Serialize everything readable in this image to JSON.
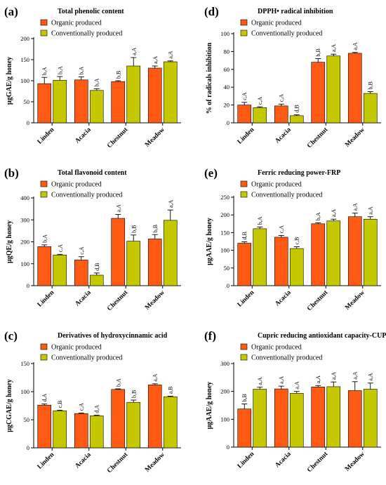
{
  "figure": {
    "panels": [
      {
        "id": "a",
        "letter": "(a)",
        "title": "Total phenolic content",
        "ylabel": "μgGAE/g honey"
      },
      {
        "id": "d",
        "letter": "(d)",
        "title": "DPPH• radical inhibition",
        "ylabel": "% of radicals inhibition"
      },
      {
        "id": "b",
        "letter": "(b)",
        "title": "Total flavonoid content",
        "ylabel": "μgQE/g honey"
      },
      {
        "id": "e",
        "letter": "(e)",
        "title": "Ferric reducing power-FRP",
        "ylabel": "μgAAE/g honey"
      },
      {
        "id": "c",
        "letter": "(c)",
        "title": "Derivatives of hydroxycinnamic acid",
        "ylabel": "μgCGAE/g honey"
      },
      {
        "id": "f",
        "letter": "(f)",
        "title": "Cupric reducing antioxidant capacity-CUPRAC",
        "ylabel": "μgAAE/g honey"
      }
    ]
  },
  "colors": {
    "organic": "#ff5a14",
    "conventional": "#c5c800"
  },
  "chart_data": [
    {
      "panel": "a",
      "type": "bar",
      "title": "Total phenolic content",
      "ylabel": "μgGAE/g honey",
      "xlabel": "",
      "categories": [
        "Linden",
        "Acacia",
        "Chestnut",
        "Meadow"
      ],
      "ylim": [
        0,
        200
      ],
      "yticks": [
        0,
        50,
        100,
        150,
        200
      ],
      "series": [
        {
          "name": "Organic produced",
          "values": [
            93,
            102,
            98,
            130
          ],
          "errors": [
            15,
            7,
            2,
            5
          ],
          "labels": [
            "b,A",
            "b,A",
            "b,B",
            "a,A"
          ]
        },
        {
          "name": "Conventionally produced",
          "values": [
            101,
            77,
            135,
            145
          ],
          "errors": [
            9,
            4,
            20,
            2
          ],
          "labels": [
            "b,A",
            "b,A",
            "a,A",
            "a,A"
          ]
        }
      ]
    },
    {
      "panel": "d",
      "type": "bar",
      "title": "DPPH• radical inhibition",
      "ylabel": "% of radicals inhibition",
      "xlabel": "",
      "categories": [
        "Linden",
        "Acacia",
        "Chestnut",
        "Meadow"
      ],
      "ylim": [
        0,
        100
      ],
      "yticks": [
        0,
        20,
        40,
        60,
        80,
        100
      ],
      "series": [
        {
          "name": "Organic produced",
          "values": [
            20,
            19,
            68,
            78
          ],
          "errors": [
            3,
            2,
            4,
            1
          ],
          "labels": [
            "c,A",
            "c,A",
            "b,B",
            "a,A"
          ]
        },
        {
          "name": "Conventionally produced",
          "values": [
            17,
            8,
            75,
            33
          ],
          "errors": [
            1,
            1,
            2,
            2
          ],
          "labels": [
            "c,A",
            "d,B",
            "a,A",
            "b,B"
          ]
        }
      ]
    },
    {
      "panel": "b",
      "type": "bar",
      "title": "Total flavonoid content",
      "ylabel": "μgQE/g honey",
      "xlabel": "",
      "categories": [
        "Linden",
        "Acacia",
        "Chestnut",
        "Meadow"
      ],
      "ylim": [
        0,
        400
      ],
      "yticks": [
        0,
        100,
        200,
        300,
        400
      ],
      "series": [
        {
          "name": "Organic produced",
          "values": [
            178,
            117,
            307,
            213
          ],
          "errors": [
            8,
            15,
            18,
            20
          ],
          "labels": [
            "b,A",
            "c,A",
            "a,A",
            "b,B"
          ]
        },
        {
          "name": "Conventionally produced",
          "values": [
            140,
            48,
            203,
            298
          ],
          "errors": [
            3,
            10,
            28,
            47
          ],
          "labels": [
            "c,A",
            "d,B",
            "b,B",
            "a,A"
          ]
        }
      ]
    },
    {
      "panel": "e",
      "type": "bar",
      "title": "Ferric reducing power-FRP",
      "ylabel": "μgAAE/g honey",
      "xlabel": "",
      "categories": [
        "Linden",
        "Acacia",
        "Chestnut",
        "Meadow"
      ],
      "ylim": [
        0,
        250
      ],
      "yticks": [
        0,
        50,
        100,
        150,
        200,
        250
      ],
      "series": [
        {
          "name": "Organic produced",
          "values": [
            120,
            137,
            175,
            195
          ],
          "errors": [
            4,
            5,
            3,
            10
          ],
          "labels": [
            "d,B",
            "c,A",
            "b,A",
            "a,A"
          ]
        },
        {
          "name": "Conventionally produced",
          "values": [
            161,
            105,
            183,
            188
          ],
          "errors": [
            5,
            5,
            5,
            7
          ],
          "labels": [
            "b,A",
            "c,B",
            "a,A",
            "a,A"
          ]
        }
      ]
    },
    {
      "panel": "c",
      "type": "bar",
      "title": "Derivatives of hydroxycinnamic acid",
      "ylabel": "μgCGAE/g honey",
      "xlabel": "",
      "categories": [
        "Linden",
        "Acacia",
        "Chestnut",
        "Meadow"
      ],
      "ylim": [
        0,
        150
      ],
      "yticks": [
        0,
        50,
        100,
        150
      ],
      "series": [
        {
          "name": "Organic produced",
          "values": [
            76,
            61,
            104,
            112
          ],
          "errors": [
            2,
            1,
            1,
            2
          ],
          "labels": [
            "d,A",
            "c,A",
            "b,A",
            "a,A"
          ]
        },
        {
          "name": "Conventionally produced",
          "values": [
            66,
            57,
            81,
            91
          ],
          "errors": [
            1,
            1,
            4,
            1
          ],
          "labels": [
            "c,B",
            "d,A",
            "b,B",
            "a,B"
          ]
        }
      ]
    },
    {
      "panel": "f",
      "type": "bar",
      "title": "Cupric reducing antioxidant capacity-CUPRAC",
      "ylabel": "μgAAE/g honey",
      "xlabel": "",
      "categories": [
        "Linden",
        "Acacia",
        "Chestnut",
        "Meadow"
      ],
      "ylim": [
        0,
        300
      ],
      "yticks": [
        0,
        100,
        200,
        300
      ],
      "series": [
        {
          "name": "Organic produced",
          "values": [
            137,
            209,
            216,
            203
          ],
          "errors": [
            18,
            10,
            5,
            32
          ],
          "labels": [
            "b,B",
            "a,A",
            "a,A",
            "a,A"
          ]
        },
        {
          "name": "Conventionally produced",
          "values": [
            208,
            193,
            217,
            208
          ],
          "errors": [
            7,
            7,
            17,
            22
          ],
          "labels": [
            "a,A",
            "a,A",
            "a,A",
            "a,A"
          ]
        }
      ]
    }
  ]
}
